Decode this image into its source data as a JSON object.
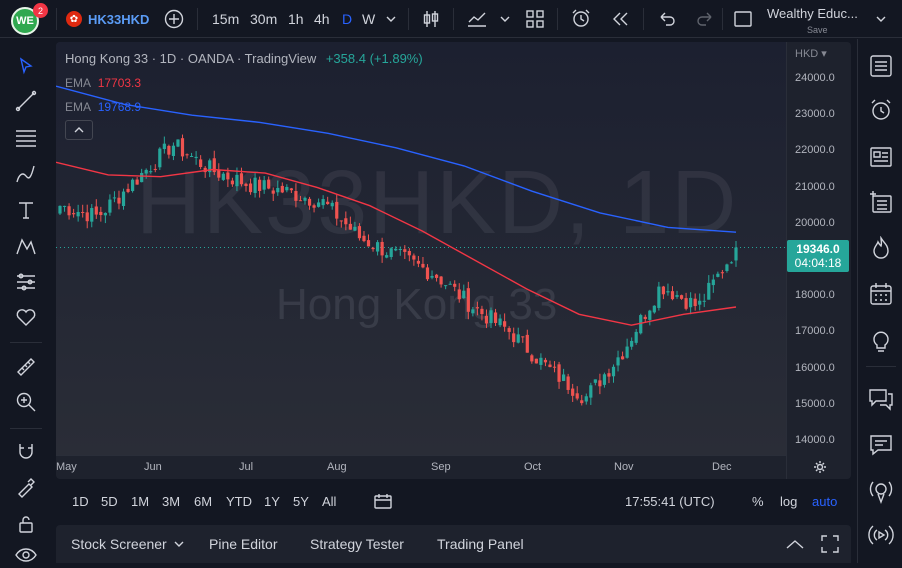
{
  "topbar": {
    "avatar_text": "WE",
    "notifications": "2",
    "symbol": "HK33HKD",
    "add_icon": "plus-circle-icon",
    "intervals": [
      "15m",
      "30m",
      "1h",
      "4h",
      "D",
      "W"
    ],
    "active_interval": "D",
    "layout_name": "Wealthy Educ...",
    "save_label": "Save"
  },
  "legend": {
    "title": "Hong Kong 33 · 1D · OANDA · TradingView",
    "change": "+358.4 (+1.89%)",
    "ema1_label": "EMA",
    "ema1_value": "17703.3",
    "ema2_label": "EMA",
    "ema2_value": "19768.9"
  },
  "watermark": {
    "symbol": "HK33HKD, 1D",
    "name": "Hong Kong 33"
  },
  "price_axis": {
    "currency": "HKD",
    "ticks": [
      "24000.0",
      "23000.0",
      "22000.0",
      "21000.0",
      "20000.0",
      "19000.0",
      "18000.0",
      "17000.0",
      "16000.0",
      "15000.0",
      "14000.0"
    ],
    "last_price": "19346.0",
    "countdown": "04:04:18"
  },
  "time_axis": {
    "months": [
      "May",
      "Jun",
      "Jul",
      "Aug",
      "Sep",
      "Oct",
      "Nov",
      "Dec"
    ]
  },
  "bottombar": {
    "ranges": [
      "1D",
      "5D",
      "1M",
      "3M",
      "6M",
      "YTD",
      "1Y",
      "5Y",
      "All"
    ],
    "clock": "17:55:41 (UTC)",
    "percent": "%",
    "log": "log",
    "auto": "auto"
  },
  "panelbar": {
    "tabs": [
      "Stock Screener",
      "Pine Editor",
      "Strategy Tester",
      "Trading Panel"
    ]
  },
  "colors": {
    "up": "#26a69a",
    "down": "#ef5350",
    "ema_fast": "#f23645",
    "ema_slow": "#2962ff",
    "accent": "#2962ff",
    "price_label": "#26a69a"
  },
  "chart_data": {
    "type": "candlestick",
    "x": [
      "May",
      "Jun",
      "Jul",
      "Aug",
      "Sep",
      "Oct",
      "Nov",
      "Dec"
    ],
    "close_path": [
      20500,
      20200,
      21200,
      22200,
      21500,
      21100,
      20900,
      20600,
      19600,
      19100,
      18600,
      17700,
      17000,
      16000,
      15200,
      16500,
      18300,
      17700,
      19346
    ],
    "ema_fast": [
      21700,
      21350,
      21300,
      21500,
      21400,
      21000,
      20500,
      19800,
      19000,
      18200,
      17500,
      17200,
      17500,
      17703
    ],
    "ema_slow": [
      23800,
      23300,
      23000,
      22800,
      22500,
      22100,
      21600,
      20900,
      20300,
      19900,
      19769
    ],
    "ylim": [
      13700,
      24400
    ]
  }
}
